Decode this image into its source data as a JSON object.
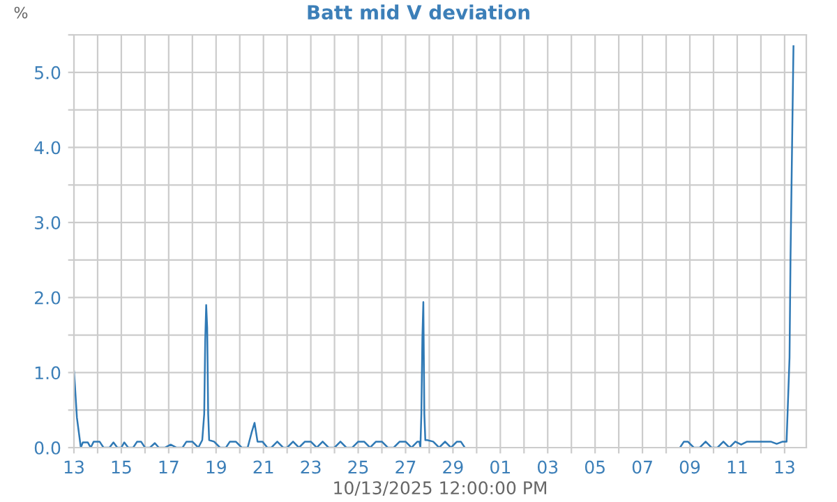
{
  "chart_data": {
    "type": "line",
    "title": "Batt mid V deviation",
    "ylabel": "%",
    "xlabel": "10/13/2025 12:00:00 PM",
    "x": [
      "2025-09-13T00:00",
      "2025-09-13T01:00",
      "2025-09-13T03:00",
      "2025-09-13T05:00",
      "2025-09-13T07:00",
      "2025-09-13T09:00",
      "2025-09-13T14:00",
      "2025-09-13T17:00",
      "2025-09-13T20:00",
      "2025-09-14T02:00",
      "2025-09-14T06:00",
      "2025-09-14T12:00",
      "2025-09-14T16:00",
      "2025-09-14T20:00",
      "2025-09-15T00:00",
      "2025-09-15T03:00",
      "2025-09-15T07:00",
      "2025-09-15T12:00",
      "2025-09-15T16:00",
      "2025-09-15T20:00",
      "2025-09-16T00:00",
      "2025-09-16T05:00",
      "2025-09-16T10:00",
      "2025-09-16T14:00",
      "2025-09-16T20:00",
      "2025-09-17T02:00",
      "2025-09-17T08:00",
      "2025-09-17T14:00",
      "2025-09-17T18:00",
      "2025-09-18T00:00",
      "2025-09-18T06:00",
      "2025-09-18T10:00",
      "2025-09-18T12:00",
      "2025-09-18T13:00",
      "2025-09-18T14:00",
      "2025-09-18T15:00",
      "2025-09-18T16:00",
      "2025-09-18T17:00",
      "2025-09-18T22:00",
      "2025-09-19T04:00",
      "2025-09-19T10:00",
      "2025-09-19T14:00",
      "2025-09-19T20:00",
      "2025-09-20T02:00",
      "2025-09-20T08:00",
      "2025-09-20T12:00",
      "2025-09-20T15:00",
      "2025-09-20T18:00",
      "2025-09-20T23:00",
      "2025-09-21T04:00",
      "2025-09-21T08:00",
      "2025-09-21T14:00",
      "2025-09-21T20:00",
      "2025-09-22T00:00",
      "2025-09-22T06:00",
      "2025-09-22T12:00",
      "2025-09-22T18:00",
      "2025-09-23T00:00",
      "2025-09-23T06:00",
      "2025-09-23T12:00",
      "2025-09-23T18:00",
      "2025-09-24T00:00",
      "2025-09-24T06:00",
      "2025-09-24T12:00",
      "2025-09-24T18:00",
      "2025-09-25T00:00",
      "2025-09-25T06:00",
      "2025-09-25T12:00",
      "2025-09-25T18:00",
      "2025-09-26T00:00",
      "2025-09-26T06:00",
      "2025-09-26T12:00",
      "2025-09-26T18:00",
      "2025-09-27T00:00",
      "2025-09-27T06:00",
      "2025-09-27T12:00",
      "2025-09-27T14:00",
      "2025-09-27T15:00",
      "2025-09-27T16:00",
      "2025-09-27T17:00",
      "2025-09-27T18:00",
      "2025-09-27T19:00",
      "2025-09-27T20:00",
      "2025-09-27T22:00",
      "2025-09-28T04:00",
      "2025-09-28T10:00",
      "2025-09-28T16:00",
      "2025-09-28T22:00",
      "2025-09-29T04:00",
      "2025-09-29T08:00",
      "2025-09-29T12:00",
      "2025-09-29T13:00",
      "2025-10-08T14:00",
      "2025-10-08T18:00",
      "2025-10-08T22:00",
      "2025-10-09T04:00",
      "2025-10-09T10:00",
      "2025-10-09T16:00",
      "2025-10-09T22:00",
      "2025-10-10T04:00",
      "2025-10-10T10:00",
      "2025-10-10T16:00",
      "2025-10-10T22:00",
      "2025-10-11T04:00",
      "2025-10-11T10:00",
      "2025-10-11T16:00",
      "2025-10-11T22:00",
      "2025-10-12T04:00",
      "2025-10-12T10:00",
      "2025-10-12T16:00",
      "2025-10-12T22:00",
      "2025-10-13T02:00",
      "2025-10-13T03:00",
      "2025-10-13T05:00",
      "2025-10-13T06:00",
      "2025-10-13T08:00",
      "2025-10-13T09:00"
    ],
    "series": [
      {
        "color": "#2f79b5",
        "values": [
          1.02,
          0.83,
          0.4,
          0.2,
          0.0,
          0.07,
          0.07,
          0.0,
          0.08,
          0.08,
          0.0,
          0.0,
          0.07,
          0.0,
          0.0,
          0.07,
          0.0,
          0.0,
          0.08,
          0.08,
          0.0,
          0.0,
          0.06,
          0.0,
          0.0,
          0.04,
          0.0,
          0.0,
          0.08,
          0.08,
          0.0,
          0.1,
          0.45,
          1.42,
          1.9,
          1.6,
          0.45,
          0.1,
          0.08,
          0.0,
          0.0,
          0.08,
          0.08,
          0.0,
          0.0,
          0.2,
          0.33,
          0.08,
          0.08,
          0.0,
          0.0,
          0.08,
          0.0,
          0.0,
          0.08,
          0.0,
          0.08,
          0.08,
          0.0,
          0.08,
          0.0,
          0.0,
          0.08,
          0.0,
          0.0,
          0.08,
          0.08,
          0.0,
          0.08,
          0.08,
          0.0,
          0.0,
          0.08,
          0.08,
          0.0,
          0.08,
          0.08,
          0.0,
          0.45,
          1.45,
          1.94,
          0.45,
          0.1,
          0.1,
          0.08,
          0.0,
          0.08,
          0.0,
          0.08,
          0.08,
          0.0,
          null,
          0.0,
          0.08,
          0.08,
          0.0,
          0.0,
          0.08,
          0.0,
          0.0,
          0.08,
          0.0,
          0.08,
          0.04,
          0.08,
          0.08,
          0.08,
          0.08,
          0.08,
          0.05,
          0.08,
          0.08,
          0.45,
          1.2,
          2.53,
          4.42,
          5.35
        ]
      }
    ],
    "xlim": [
      "2025-09-13T00:00",
      "2025-10-13T22:00"
    ],
    "xticks": [
      {
        "value": "2025-09-13",
        "label": "13"
      },
      {
        "value": "2025-09-14",
        "label": null
      },
      {
        "value": "2025-09-15",
        "label": "15"
      },
      {
        "value": "2025-09-16",
        "label": null
      },
      {
        "value": "2025-09-17",
        "label": "17"
      },
      {
        "value": "2025-09-18",
        "label": null
      },
      {
        "value": "2025-09-19",
        "label": "19"
      },
      {
        "value": "2025-09-20",
        "label": null
      },
      {
        "value": "2025-09-21",
        "label": "21"
      },
      {
        "value": "2025-09-22",
        "label": null
      },
      {
        "value": "2025-09-23",
        "label": "23"
      },
      {
        "value": "2025-09-24",
        "label": null
      },
      {
        "value": "2025-09-25",
        "label": "25"
      },
      {
        "value": "2025-09-26",
        "label": null
      },
      {
        "value": "2025-09-27",
        "label": "27"
      },
      {
        "value": "2025-09-28",
        "label": null
      },
      {
        "value": "2025-09-29",
        "label": "29"
      },
      {
        "value": "2025-09-30",
        "label": null
      },
      {
        "value": "2025-10-01",
        "label": "01"
      },
      {
        "value": "2025-10-02",
        "label": null
      },
      {
        "value": "2025-10-03",
        "label": "03"
      },
      {
        "value": "2025-10-04",
        "label": null
      },
      {
        "value": "2025-10-05",
        "label": "05"
      },
      {
        "value": "2025-10-06",
        "label": null
      },
      {
        "value": "2025-10-07",
        "label": "07"
      },
      {
        "value": "2025-10-08",
        "label": null
      },
      {
        "value": "2025-10-09",
        "label": "09"
      },
      {
        "value": "2025-10-10",
        "label": null
      },
      {
        "value": "2025-10-11",
        "label": "11"
      },
      {
        "value": "2025-10-12",
        "label": null
      },
      {
        "value": "2025-10-13",
        "label": "13"
      }
    ],
    "ylim": [
      0,
      5.5
    ],
    "yticks": [
      {
        "value": 0,
        "label": "0.0"
      },
      {
        "value": 0.5,
        "label": null
      },
      {
        "value": 1,
        "label": "1.0"
      },
      {
        "value": 1.5,
        "label": null
      },
      {
        "value": 2,
        "label": "2.0"
      },
      {
        "value": 2.5,
        "label": null
      },
      {
        "value": 3,
        "label": "3.0"
      },
      {
        "value": 3.5,
        "label": null
      },
      {
        "value": 4,
        "label": "4.0"
      },
      {
        "value": 4.5,
        "label": null
      },
      {
        "value": 5,
        "label": "5.0"
      },
      {
        "value": 5.5,
        "label": null
      }
    ],
    "grid": true,
    "legend": false
  }
}
